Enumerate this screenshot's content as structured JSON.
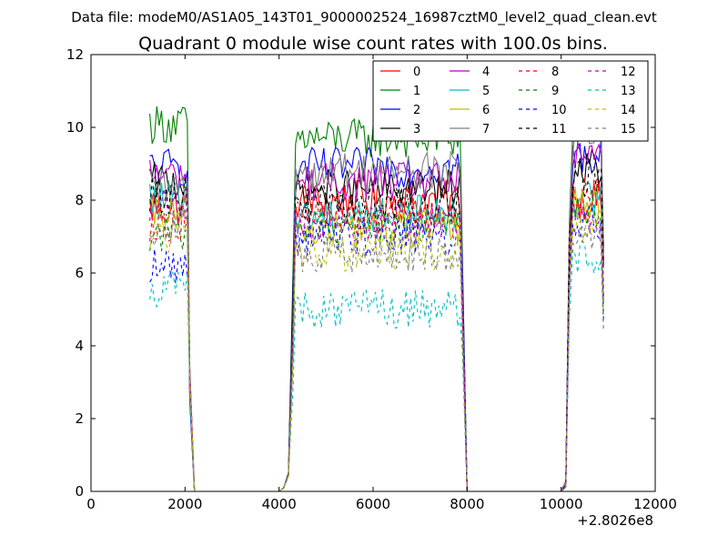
{
  "chart_data": {
    "type": "line",
    "suptitle": "Data file: modeM0/AS1A05_143T01_9000002524_16987cztM0_level2_quad_clean.evt",
    "title": "Quadrant 0 module wise count rates with 100.0s bins.",
    "xlabel": "",
    "ylabel": "",
    "xlim": [
      0,
      12000
    ],
    "ylim": [
      0,
      12
    ],
    "x_offset_label": "+2.8026e8",
    "x_ticks": [
      0,
      2000,
      4000,
      6000,
      8000,
      10000,
      12000
    ],
    "x_tick_labels": [
      "0",
      "2000",
      "4000",
      "6000",
      "8000",
      "10000",
      "12000"
    ],
    "y_ticks": [
      0,
      2,
      4,
      6,
      8,
      10,
      12
    ],
    "y_tick_labels": [
      "0",
      "2",
      "4",
      "6",
      "8",
      "10",
      "12"
    ],
    "grid": false,
    "legend_position": "top-right",
    "segments": [
      {
        "start": 1250,
        "end": 2050
      },
      {
        "start": 4350,
        "end": 7850
      },
      {
        "start": 10250,
        "end": 10850
      }
    ],
    "gap_points": [
      [
        2100,
        3.0
      ],
      [
        2200,
        0.0
      ],
      [
        4000,
        0.0
      ],
      [
        4100,
        0.1
      ],
      [
        4200,
        0.4
      ],
      [
        4300,
        4.5
      ],
      [
        7900,
        4.5
      ],
      [
        8000,
        0.0
      ],
      [
        10000,
        0.0
      ],
      [
        10100,
        0.1
      ],
      [
        10900,
        4.8
      ]
    ],
    "series": [
      {
        "name": "0",
        "color": "#ff0000",
        "dash": "solid",
        "mean": [
          7.8,
          8.0,
          8.0
        ]
      },
      {
        "name": "1",
        "color": "#008000",
        "dash": "solid",
        "mean": [
          10.1,
          9.7,
          10.0
        ]
      },
      {
        "name": "2",
        "color": "#0000ff",
        "dash": "solid",
        "mean": [
          8.9,
          8.9,
          9.2
        ]
      },
      {
        "name": "3",
        "color": "#000000",
        "dash": "solid",
        "mean": [
          8.5,
          8.3,
          8.9
        ]
      },
      {
        "name": "4",
        "color": "#bf00bf",
        "dash": "solid",
        "mean": [
          8.7,
          8.5,
          9.2
        ]
      },
      {
        "name": "5",
        "color": "#00bfbf",
        "dash": "solid",
        "mean": [
          8.0,
          7.6,
          8.0
        ]
      },
      {
        "name": "6",
        "color": "#bfbf00",
        "dash": "solid",
        "mean": [
          7.6,
          7.2,
          8.0
        ]
      },
      {
        "name": "7",
        "color": "#808080",
        "dash": "solid",
        "mean": [
          8.3,
          8.8,
          9.8
        ]
      },
      {
        "name": "8",
        "color": "#ff0000",
        "dash": "dashed",
        "mean": [
          7.4,
          7.6,
          8.1
        ]
      },
      {
        "name": "9",
        "color": "#008000",
        "dash": "dashed",
        "mean": [
          7.1,
          7.3,
          7.8
        ]
      },
      {
        "name": "10",
        "color": "#0000ff",
        "dash": "dashed",
        "mean": [
          6.2,
          7.0,
          7.5
        ]
      },
      {
        "name": "11",
        "color": "#000000",
        "dash": "dashed",
        "mean": [
          8.1,
          7.9,
          8.6
        ]
      },
      {
        "name": "12",
        "color": "#bf00bf",
        "dash": "dashed",
        "mean": [
          7.8,
          7.4,
          7.5
        ]
      },
      {
        "name": "13",
        "color": "#00bfbf",
        "dash": "dashed",
        "mean": [
          5.6,
          5.0,
          6.5
        ]
      },
      {
        "name": "14",
        "color": "#bfbf00",
        "dash": "dashed",
        "mean": [
          7.0,
          6.6,
          7.4
        ]
      },
      {
        "name": "15",
        "color": "#808080",
        "dash": "dashed",
        "mean": [
          7.3,
          6.5,
          7.2
        ]
      }
    ]
  }
}
